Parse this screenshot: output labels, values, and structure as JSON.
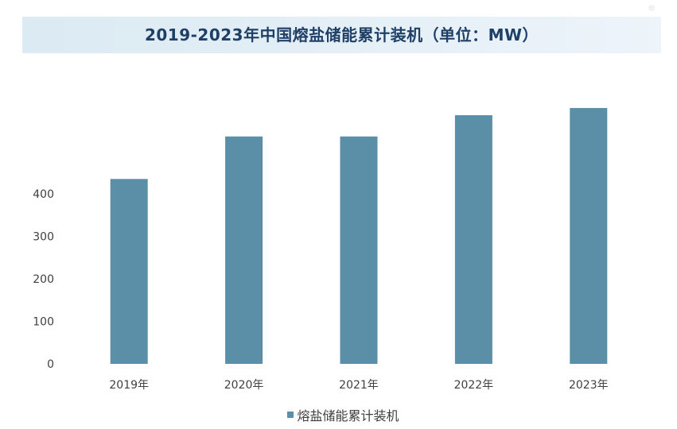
{
  "title": "2019-2023年中国熔盐储能累计装机（单位：MW）",
  "colors": {
    "bar": "#5b8fa8",
    "axis_text": "#404040",
    "title_text": "#1f3f66",
    "banner": "#dbeaf3"
  },
  "chart_data": {
    "type": "bar",
    "title": "2019-2023年中国熔盐储能累计装机（单位：MW）",
    "categories": [
      "2019年",
      "2020年",
      "2021年",
      "2022年",
      "2023年"
    ],
    "series": [
      {
        "name": "熔盐储能累计装机",
        "values": [
          435,
          535,
          535,
          585,
          602
        ]
      }
    ],
    "y_ticks": [
      0,
      100,
      200,
      300,
      400
    ],
    "ylim": [
      0,
      630
    ],
    "xlabel": "",
    "ylabel": "",
    "grid": false,
    "legend": "bottom-center"
  }
}
